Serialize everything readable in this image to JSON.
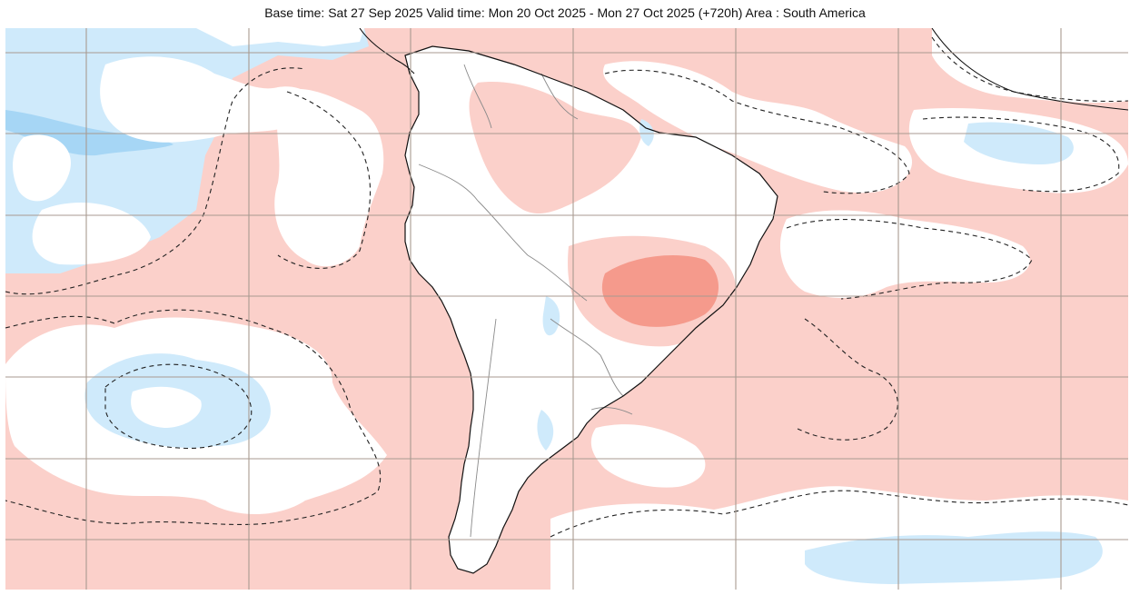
{
  "header": {
    "title": "Base time: Sat 27 Sep 2025 Valid time: Mon 20 Oct 2025 - Mon 27 Oct 2025 (+720h) Area : South America"
  },
  "map": {
    "area": "South America",
    "colors": {
      "positive_anomaly": "#fbd0ca",
      "strong_positive_anomaly": "#f59a8c",
      "neutral": "#ffffff",
      "negative_anomaly": "#cfeafb",
      "strong_negative_anomaly": "#a6d6f5",
      "gridline": "#a89a90",
      "coastline": "#111111",
      "border": "#8a8a8a",
      "contour": "#222222"
    }
  }
}
